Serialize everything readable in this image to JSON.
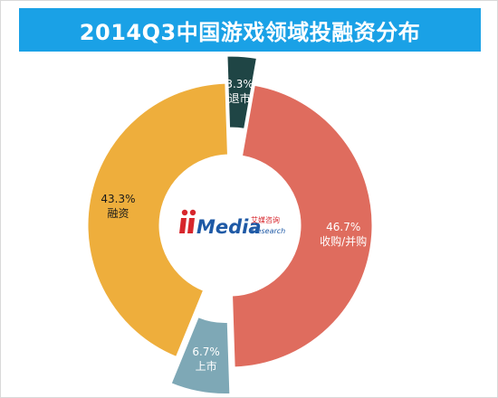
{
  "title": "2014Q3中国游戏领域投融资分布",
  "colors": {
    "title_bg": "#1aa1e6",
    "title_text": "#ffffff"
  },
  "logo": {
    "brand": "Media",
    "cn": "艾媒咨询",
    "en": "Research"
  },
  "chart_data": {
    "type": "pie",
    "subtype": "donut",
    "title": "2014Q3中国游戏领域投融资分布",
    "slices": [
      {
        "label": "收购/并购",
        "value": 46.7,
        "display": "46.7%",
        "color": "#df6c5e",
        "label_color": "#ffffff"
      },
      {
        "label": "上市",
        "value": 6.7,
        "display": "6.7%",
        "color": "#7ea8b6",
        "label_color": "#ffffff",
        "exploded": true
      },
      {
        "label": "融资",
        "value": 43.3,
        "display": "43.3%",
        "color": "#eeae3c",
        "label_color": "#1a1a1a"
      },
      {
        "label": "退市",
        "value": 3.3,
        "display": "3.3%",
        "color": "#1f4545",
        "label_color": "#ffffff",
        "exploded": true
      }
    ]
  }
}
